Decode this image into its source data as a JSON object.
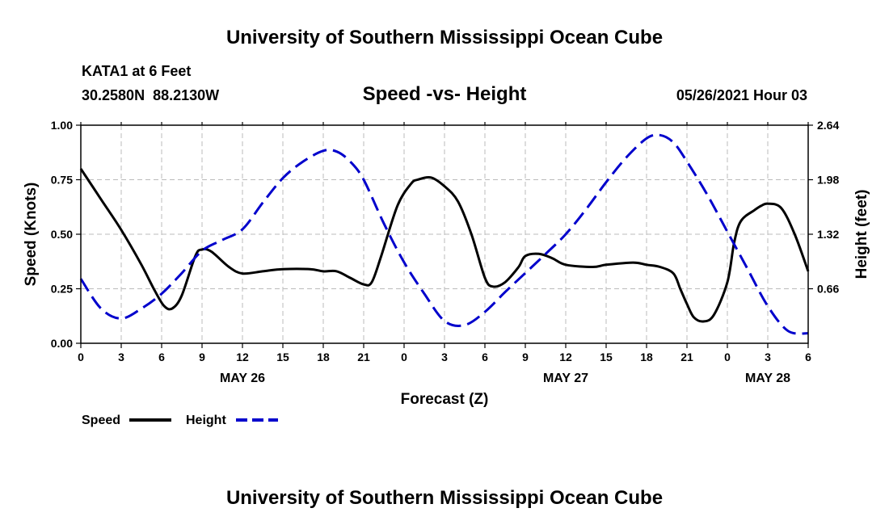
{
  "chart_data": {
    "type": "line",
    "title": "University of Southern Mississippi Ocean Cube",
    "footer_title": "University of Southern Mississippi Ocean Cube",
    "station": "KATA1 at 6 Feet",
    "coordinates": "30.2580N  88.2130W",
    "subtitle": "Speed -vs- Height",
    "timestamp": "05/26/2021 Hour 03",
    "xlabel": "Forecast (Z)",
    "ylabel_left": "Speed (Knots)",
    "ylabel_right": "Height (feet)",
    "xlim": [
      0,
      54
    ],
    "ylim_left": [
      0,
      1
    ],
    "ylim_right": [
      0,
      2.64
    ],
    "grid": true,
    "x_ticks": [
      0,
      3,
      6,
      9,
      12,
      15,
      18,
      21,
      24,
      27,
      30,
      33,
      36,
      39,
      42,
      45,
      48,
      51,
      54
    ],
    "x_tick_labels": [
      "0",
      "3",
      "6",
      "9",
      "12",
      "15",
      "18",
      "21",
      "0",
      "3",
      "6",
      "9",
      "12",
      "15",
      "18",
      "21",
      "0",
      "3",
      "6"
    ],
    "y_left_ticks": [
      0,
      0.25,
      0.5,
      0.75,
      1.0
    ],
    "y_left_tick_labels": [
      "0.00",
      "0.25",
      "0.50",
      "0.75",
      "1.00"
    ],
    "y_right_ticks": [
      0.66,
      1.32,
      1.98,
      2.64
    ],
    "y_right_tick_labels": [
      "0.66",
      "1.32",
      "1.98",
      "2.64"
    ],
    "date_labels": [
      {
        "x": 12,
        "label": "MAY 26"
      },
      {
        "x": 36,
        "label": "MAY 27"
      },
      {
        "x": 51,
        "label": "MAY 28"
      }
    ],
    "series": [
      {
        "name": "Speed",
        "axis": "left",
        "color": "#000000",
        "dash": "solid",
        "x": [
          0,
          1.5,
          3,
          4.5,
          5.5,
          6.2,
          6.8,
          7.5,
          8.5,
          9,
          9.7,
          11,
          12,
          13.5,
          15,
          17,
          18,
          19,
          20,
          21,
          21.6,
          22.3,
          23.5,
          24.5,
          25,
          26,
          27,
          28,
          29,
          30,
          30.6,
          31.5,
          32.5,
          33,
          34,
          35,
          36,
          38,
          39,
          41,
          42,
          43,
          44,
          44.5,
          45,
          45.5,
          46.2,
          47,
          48,
          48.5,
          49,
          50,
          50.5,
          51,
          52,
          53,
          54
        ],
        "values": [
          0.8,
          0.66,
          0.52,
          0.36,
          0.24,
          0.17,
          0.16,
          0.22,
          0.4,
          0.43,
          0.42,
          0.35,
          0.32,
          0.33,
          0.34,
          0.34,
          0.33,
          0.33,
          0.3,
          0.27,
          0.28,
          0.4,
          0.63,
          0.73,
          0.75,
          0.76,
          0.72,
          0.65,
          0.5,
          0.3,
          0.26,
          0.28,
          0.35,
          0.4,
          0.41,
          0.39,
          0.36,
          0.35,
          0.36,
          0.37,
          0.36,
          0.35,
          0.32,
          0.25,
          0.18,
          0.12,
          0.1,
          0.13,
          0.28,
          0.46,
          0.56,
          0.61,
          0.63,
          0.64,
          0.62,
          0.5,
          0.33
        ]
      },
      {
        "name": "Height",
        "axis": "right",
        "color": "#0000cc",
        "dash": "dashed",
        "x": [
          0,
          1.5,
          3,
          4.5,
          6,
          7.5,
          9,
          10.5,
          12,
          13.5,
          15,
          16.5,
          18,
          19,
          20,
          21,
          22.5,
          24,
          25.5,
          27,
          28.5,
          30,
          31.5,
          33,
          34.5,
          36,
          37.5,
          39,
          40.5,
          42,
          43,
          44,
          45,
          46.5,
          48,
          49.5,
          51,
          52.5,
          54
        ],
        "values": [
          0.78,
          0.42,
          0.3,
          0.42,
          0.6,
          0.85,
          1.12,
          1.25,
          1.38,
          1.7,
          2.0,
          2.2,
          2.33,
          2.32,
          2.2,
          1.98,
          1.45,
          0.98,
          0.6,
          0.27,
          0.22,
          0.38,
          0.62,
          0.85,
          1.08,
          1.32,
          1.62,
          1.95,
          2.25,
          2.48,
          2.52,
          2.43,
          2.2,
          1.8,
          1.35,
          0.9,
          0.45,
          0.15,
          0.12
        ]
      }
    ]
  }
}
